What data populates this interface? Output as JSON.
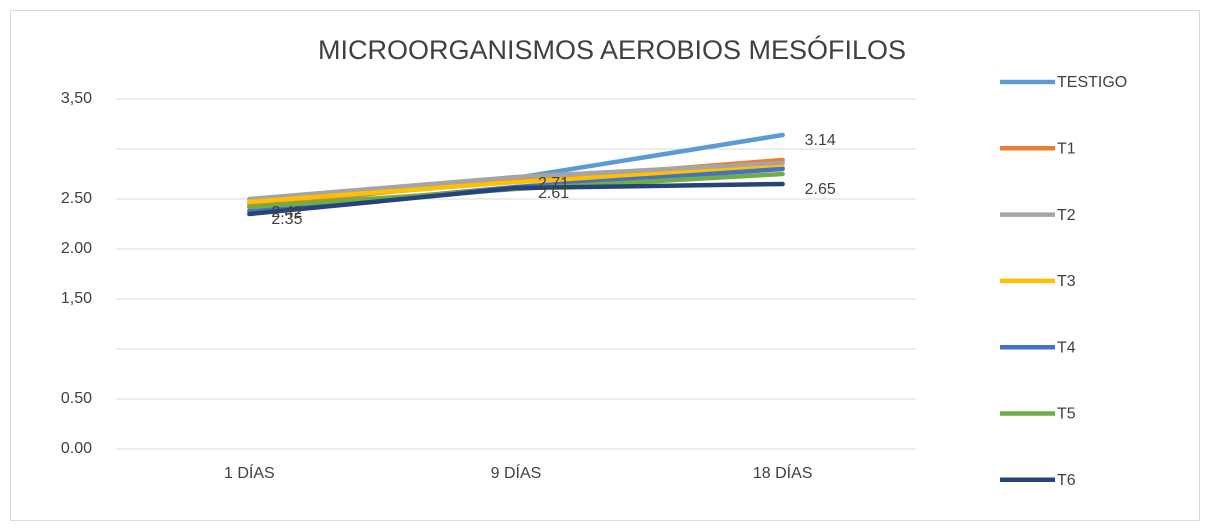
{
  "chart_data": {
    "type": "line",
    "title": "MICROORGANISMOS AEROBIOS MESÓFILOS",
    "categories": [
      "1 DÍAS",
      "9 DÍAS",
      "18 DÍAS"
    ],
    "ylim": [
      0,
      3.5
    ],
    "yticks": [
      {
        "value": 0,
        "label": "0.00"
      },
      {
        "value": 0.5,
        "label": "0.50"
      },
      {
        "value": 1,
        "label": null
      },
      {
        "value": 1.5,
        "label": "1,50"
      },
      {
        "value": 2,
        "label": "2.00"
      },
      {
        "value": 2.5,
        "label": "2.50"
      },
      {
        "value": 3,
        "label": null
      },
      {
        "value": 3.5,
        "label": "3,50"
      }
    ],
    "grid": true,
    "legend": "right",
    "series": [
      {
        "name": "TESTIGO",
        "color": "#5b9bd5",
        "values": [
          2.42,
          2.71,
          3.14
        ],
        "data_labels": true
      },
      {
        "name": "T1",
        "color": "#ed7d31",
        "values": [
          2.45,
          2.68,
          2.89
        ]
      },
      {
        "name": "T2",
        "color": "#a5a5a5",
        "values": [
          2.5,
          2.72,
          2.86
        ]
      },
      {
        "name": "T3",
        "color": "#ffc000",
        "values": [
          2.47,
          2.67,
          2.82
        ]
      },
      {
        "name": "T4",
        "color": "#4472c4",
        "values": [
          2.38,
          2.62,
          2.8
        ]
      },
      {
        "name": "T5",
        "color": "#70ad47",
        "values": [
          2.42,
          2.6,
          2.75
        ]
      },
      {
        "name": "T6",
        "color": "#264478",
        "values": [
          2.35,
          2.61,
          2.65
        ],
        "data_labels": true
      }
    ]
  }
}
